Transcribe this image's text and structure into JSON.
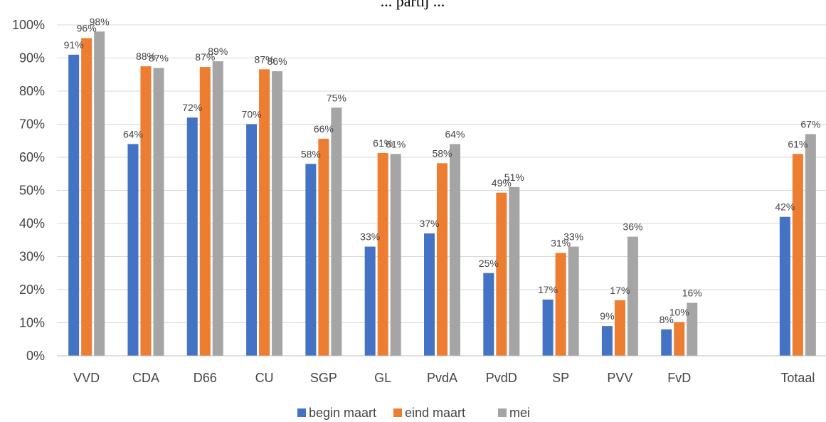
{
  "chart_data": {
    "type": "bar",
    "title": "... partij ...",
    "categories": [
      "VVD",
      "CDA",
      "D66",
      "CU",
      "SGP",
      "GL",
      "PvdA",
      "PvdD",
      "SP",
      "PVV",
      "FvD",
      "",
      "Totaal"
    ],
    "series": [
      {
        "name": "begin maart",
        "color": "#4472C4",
        "values": [
          91,
          64,
          72,
          70,
          58,
          33,
          37,
          25,
          17,
          9,
          8,
          null,
          42
        ],
        "labels": [
          "91%",
          "64%",
          "72%",
          "70%",
          "58%",
          "33%",
          "37%",
          "25%",
          "17%",
          "9%",
          "8%",
          "",
          "42%"
        ]
      },
      {
        "name": "eind maart",
        "color": "#ED7D31",
        "values": [
          96,
          87.5,
          87.3,
          86.6,
          65.6,
          61.3,
          58.2,
          49.3,
          31.1,
          16.8,
          10.2,
          null,
          61
        ],
        "labels": [
          "96%",
          "88%",
          "87%",
          "87%",
          "66%",
          "61%",
          "58%",
          "49%",
          "31%",
          "17%",
          "10%",
          "",
          "61%"
        ]
      },
      {
        "name": "mei",
        "color": "#A5A5A5",
        "values": [
          98,
          87,
          89,
          86,
          75,
          61,
          64,
          51,
          33,
          36,
          16,
          null,
          67
        ],
        "labels": [
          "98%",
          "87%",
          "89%",
          "86%",
          "75%",
          "61%",
          "64%",
          "51%",
          "33%",
          "36%",
          "16%",
          "",
          "67%"
        ]
      }
    ],
    "ylim": [
      0,
      100
    ],
    "yticks": [
      "0%",
      "10%",
      "20%",
      "30%",
      "40%",
      "50%",
      "60%",
      "70%",
      "80%",
      "90%",
      "100%"
    ],
    "grid": true,
    "legend": "bottom"
  }
}
